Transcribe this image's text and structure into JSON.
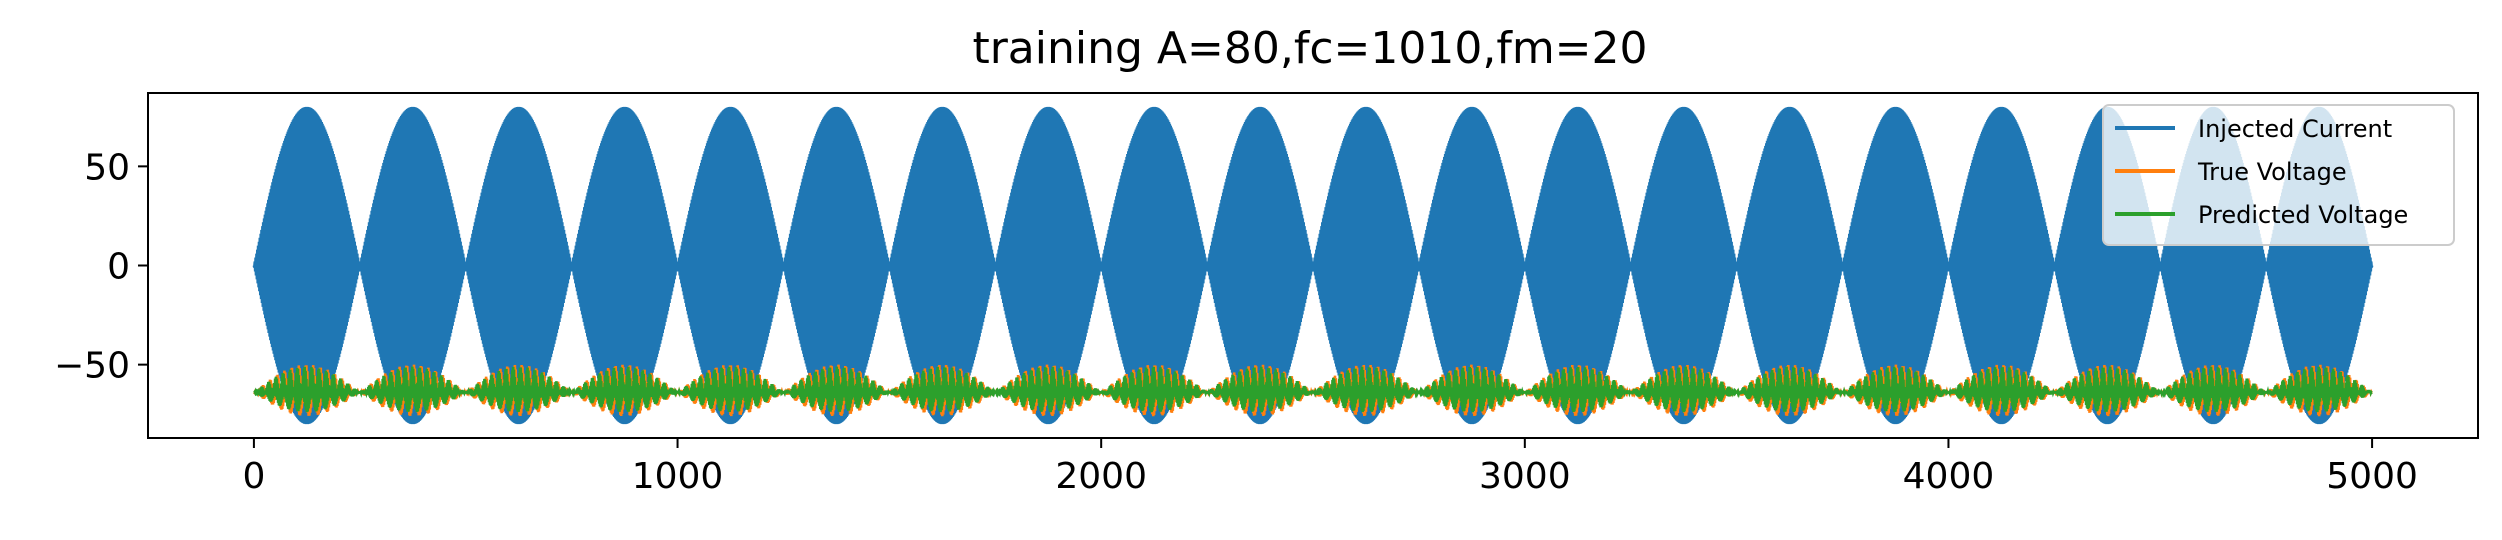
{
  "chart_data": {
    "type": "line",
    "title": "training A=80,fc=1010,fm=20",
    "xlabel": "",
    "ylabel": "",
    "xlim": [
      -250,
      5250
    ],
    "ylim": [
      -87,
      87
    ],
    "xticks": [
      0,
      1000,
      2000,
      3000,
      4000,
      5000
    ],
    "xtick_labels": [
      "0",
      "1000",
      "2000",
      "3000",
      "4000",
      "5000"
    ],
    "yticks": [
      -50,
      0,
      50
    ],
    "ytick_labels": [
      "−50",
      "0",
      "50"
    ],
    "grid": false,
    "legend_position": "top-right",
    "n_points": 5000,
    "series": [
      {
        "name": "Injected Current",
        "color": "#1f77b4",
        "form": "A*sin(2*pi*fm*t)*sin(2*pi*fc*t)",
        "A": 80,
        "fc": 1010,
        "fm": 20,
        "envelope_max": 80,
        "envelope_period_samples": 250,
        "envelope_peaks_x": [
          125,
          375,
          625,
          875,
          1125,
          1375,
          1625,
          1875,
          2125,
          2375,
          2625,
          2875,
          3125,
          3375,
          3625,
          3875,
          4125,
          4375,
          4625,
          4875
        ],
        "y_range": [
          -80,
          80
        ]
      },
      {
        "name": "True Voltage",
        "color": "#ff7f0e",
        "baseline": -64,
        "y_range": [
          -76,
          -50
        ],
        "envelope_period_samples": 250
      },
      {
        "name": "Predicted Voltage",
        "color": "#2ca02c",
        "baseline": -64,
        "y_range": [
          -74,
          -51
        ],
        "envelope_period_samples": 250
      }
    ]
  }
}
